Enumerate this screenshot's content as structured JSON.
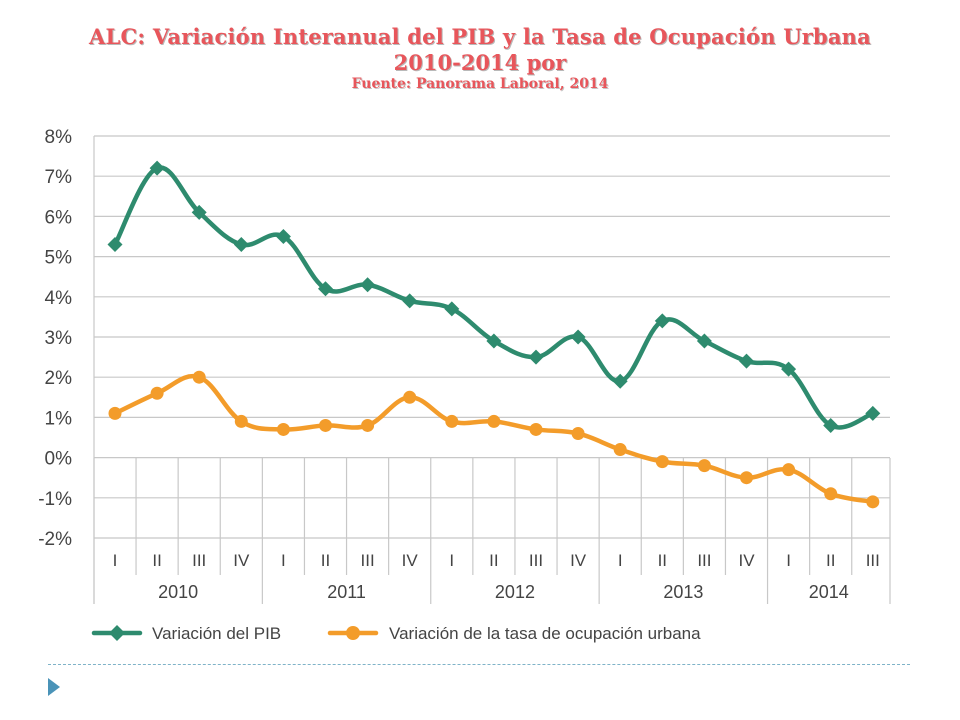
{
  "header": {
    "title_line1": "ALC: Variación Interanual del PIB y la Tasa de Ocupación Urbana",
    "title_line2": "2010-2014 por",
    "source": "Fuente: Panorama Laboral, 2014"
  },
  "colors": {
    "pib": "#2e8b6e",
    "ocupacion": "#f39c2a",
    "grid": "#c8c8c8",
    "title": "#e8565b"
  },
  "chart_data": {
    "type": "line",
    "title": "ALC: Variación Interanual del PIB y la Tasa de Ocupación Urbana 2010-2014 por",
    "xlabel": "",
    "ylabel": "",
    "ylim": [
      -2,
      8
    ],
    "y_ticks": [
      "8%",
      "7%",
      "6%",
      "5%",
      "4%",
      "3%",
      "2%",
      "1%",
      "0%",
      "-1%",
      "-2%"
    ],
    "y_tick_values": [
      8,
      7,
      6,
      5,
      4,
      3,
      2,
      1,
      0,
      -1,
      -2
    ],
    "categories": [
      "I",
      "II",
      "III",
      "IV",
      "I",
      "II",
      "III",
      "IV",
      "I",
      "II",
      "III",
      "IV",
      "I",
      "II",
      "III",
      "IV",
      "I",
      "II",
      "III"
    ],
    "years": [
      {
        "label": "2010",
        "quarters": 4
      },
      {
        "label": "2011",
        "quarters": 4
      },
      {
        "label": "2012",
        "quarters": 4
      },
      {
        "label": "2013",
        "quarters": 4
      },
      {
        "label": "2014",
        "quarters": 3
      }
    ],
    "series": [
      {
        "name": "Variación del PIB",
        "marker": "diamond",
        "values": [
          5.3,
          7.2,
          6.1,
          5.3,
          5.5,
          4.2,
          4.3,
          3.9,
          3.7,
          2.9,
          2.5,
          3.0,
          1.9,
          3.4,
          2.9,
          2.4,
          2.2,
          0.8,
          1.1
        ]
      },
      {
        "name": "Variación de la tasa de ocupación urbana",
        "marker": "circle",
        "values": [
          1.1,
          1.6,
          2.0,
          0.9,
          0.7,
          0.8,
          0.8,
          1.5,
          0.9,
          0.9,
          0.7,
          0.6,
          0.2,
          -0.1,
          -0.2,
          -0.5,
          -0.3,
          -0.9,
          -1.1
        ]
      }
    ],
    "grid": true,
    "legend_position": "bottom"
  }
}
